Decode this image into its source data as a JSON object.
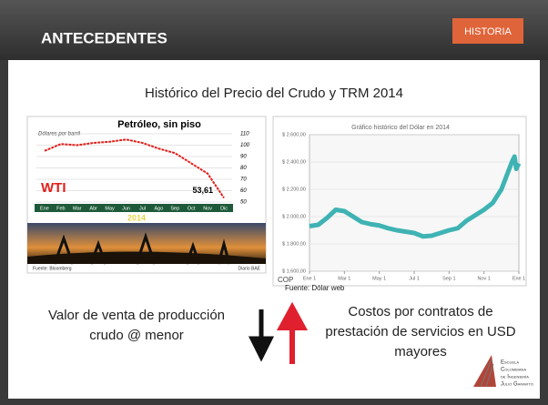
{
  "header": {
    "title": "ANTECEDENTES",
    "tag": "HISTORIA"
  },
  "slide_title": "Histórico del Precio del Crudo y TRM  2014",
  "left_text": [
    "Valor de venta de producción",
    "crudo  @ menor"
  ],
  "right_text": [
    "Costos por contratos de",
    "prestación de servicios en USD",
    "mayores"
  ],
  "logo": [
    "Escuela",
    "Colombiana",
    "de Ingeniería",
    "Julio Garavito"
  ],
  "chart_data": [
    {
      "type": "line",
      "title": "Petróleo, sin piso",
      "y_label": "Dólares por barril",
      "series_label": "WTI",
      "year": "2014",
      "categories": [
        "Ene",
        "Feb",
        "Mar",
        "Abr",
        "May",
        "Jun",
        "Jul",
        "Ago",
        "Sep",
        "Oct",
        "Nov",
        "Dic"
      ],
      "values": [
        95,
        101,
        100,
        102,
        103,
        105,
        102,
        97,
        93,
        84,
        75,
        53.61
      ],
      "value_labels": [
        null,
        null,
        null,
        null,
        null,
        null,
        null,
        null,
        null,
        null,
        null,
        "53,61"
      ],
      "color": "#e0201b",
      "ylim": [
        50,
        110
      ],
      "yticks": [
        110,
        100,
        90,
        80,
        70,
        60,
        50
      ],
      "grid": true,
      "source": "Fuente: Bloomberg",
      "credit": "Diario BAE"
    },
    {
      "type": "line",
      "title": "Gráfico histórico del Dólar en 2014",
      "y_unit": "COP",
      "source": "Fuente: Dólar web",
      "x": [
        0,
        0.5,
        1,
        1.5,
        2,
        2.5,
        3,
        3.5,
        4,
        4.5,
        5,
        5.5,
        6,
        6.5,
        7,
        7.5,
        8,
        8.5,
        9,
        9.5,
        10,
        10.5,
        11,
        11.3,
        11.6,
        11.75,
        11.85,
        12
      ],
      "values": [
        1930,
        1940,
        1990,
        2050,
        2040,
        2000,
        1960,
        1945,
        1935,
        1915,
        1900,
        1890,
        1880,
        1855,
        1860,
        1880,
        1900,
        1915,
        1970,
        2010,
        2050,
        2100,
        2200,
        2300,
        2400,
        2440,
        2350,
        2390
      ],
      "color": "#3fb3b3",
      "xlim": [
        0,
        12
      ],
      "xticks": [
        {
          "value": 0,
          "label": "Ene 1"
        },
        {
          "value": 2,
          "label": "Mar 1"
        },
        {
          "value": 4,
          "label": "May 1"
        },
        {
          "value": 6,
          "label": "Jul 1"
        },
        {
          "value": 8,
          "label": "Sep 1"
        },
        {
          "value": 10,
          "label": "Nov 1"
        },
        {
          "value": 12,
          "label": "Ene 1"
        }
      ],
      "ylim": [
        1600,
        2600
      ],
      "yticks": [
        {
          "value": 2600,
          "label": "$ 2.600,00"
        },
        {
          "value": 2400,
          "label": "$ 2.400,00"
        },
        {
          "value": 2200,
          "label": "$ 2.200,00"
        },
        {
          "value": 2000,
          "label": "$ 2.000,00"
        },
        {
          "value": 1800,
          "label": "$ 1.800,00"
        },
        {
          "value": 1600,
          "label": "$ 1.600,00"
        }
      ],
      "grid": true
    }
  ]
}
